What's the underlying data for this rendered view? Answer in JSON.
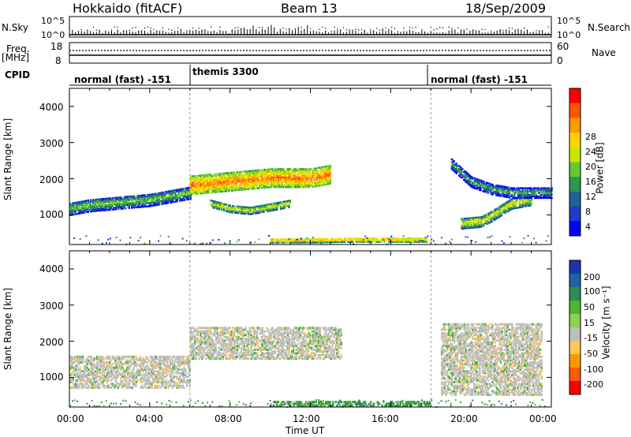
{
  "header": {
    "station": "Hokkaido (fitACF)",
    "beam": "Beam 13",
    "date": "18/Sep/2009"
  },
  "panels": {
    "nsky": {
      "label": "N.Sky",
      "ticks_left": [
        "10^5",
        "10^0"
      ],
      "ticks_right": [
        "10^5",
        "10^0"
      ],
      "right_label": "N.Search"
    },
    "freq": {
      "label": "Freq.",
      "unit": "[MHz]",
      "ticks_left": [
        "18",
        "8"
      ],
      "ticks_right": [
        "60",
        "0"
      ],
      "right_label": "Nave"
    },
    "cpid": {
      "label": "CPID",
      "segments": [
        "normal (fast) -151",
        "themis 3300",
        "normal (fast) -151"
      ]
    }
  },
  "axes": {
    "y_label": "Slant Range [km]",
    "y_ticks": [
      "4000",
      "3000",
      "2000",
      "1000"
    ],
    "x_label": "Time UT",
    "x_ticks": [
      "00:00",
      "04:00",
      "08:00",
      "12:00",
      "16:00",
      "20:00",
      "00:00"
    ]
  },
  "colorbars": {
    "power": {
      "label": "Power [dB]",
      "ticks": [
        "28",
        "24",
        "20",
        "16",
        "12",
        "8",
        "4"
      ],
      "colors": [
        "#ff0000",
        "#ff5500",
        "#ff9900",
        "#ffd200",
        "#c8e600",
        "#64c832",
        "#2d9650",
        "#1e6496",
        "#1e3cc8",
        "#0000ff"
      ]
    },
    "velocity": {
      "label": "Velocity [m s⁻¹]",
      "ticks": [
        "200",
        "100",
        "50",
        "15",
        "-15",
        "-50",
        "-100",
        "-200"
      ],
      "colors": [
        "#1e32b4",
        "#1e64a0",
        "#2d8c50",
        "#50b432",
        "#8cd250",
        "#bebebe",
        "#ffc850",
        "#ff9600",
        "#ff5a00",
        "#ff0000"
      ]
    }
  },
  "chart_data": {
    "type": "heatmap",
    "x_unit": "UT hours",
    "x_range": [
      0,
      24
    ],
    "y_range_km": [
      180,
      4500
    ],
    "cpid_segments": [
      {
        "start": 0,
        "end": 6,
        "name": "normal (fast) -151"
      },
      {
        "start": 6,
        "end": 18,
        "name": "themis 3300"
      },
      {
        "start": 18,
        "end": 24,
        "name": "normal (fast) -151"
      }
    ],
    "power_bands": [
      {
        "t": [
          0,
          1,
          2,
          3,
          4,
          5,
          6
        ],
        "range": [
          1150,
          1250,
          1300,
          1350,
          1400,
          1500,
          1600
        ],
        "width": 350,
        "power": 16
      },
      {
        "t": [
          6,
          7,
          8,
          9,
          10,
          11,
          12,
          13
        ],
        "range": [
          1800,
          1850,
          1900,
          1950,
          2000,
          2000,
          2000,
          2100
        ],
        "width": 500,
        "power": 26
      },
      {
        "t": [
          7,
          8,
          9,
          10,
          11
        ],
        "range": [
          1300,
          1150,
          1100,
          1200,
          1300
        ],
        "width": 200,
        "power": 20
      },
      {
        "t": [
          10,
          12,
          14,
          16,
          17.8
        ],
        "range": [
          280,
          280,
          300,
          300,
          300
        ],
        "width": 130,
        "power": 24
      },
      {
        "t": [
          19.5,
          20.5,
          21,
          22,
          23
        ],
        "range": [
          750,
          800,
          950,
          1300,
          1400
        ],
        "width": 300,
        "power": 20
      },
      {
        "t": [
          19,
          20,
          21,
          22,
          24
        ],
        "range": [
          2400,
          1900,
          1700,
          1600,
          1600
        ],
        "width": 300,
        "power": 14
      }
    ],
    "velocity_regions": [
      {
        "t": [
          0,
          6
        ],
        "range": [
          700,
          1600
        ],
        "velocity": 0
      },
      {
        "t": [
          6,
          13.5
        ],
        "range": [
          1500,
          2400
        ],
        "velocity": 0
      },
      {
        "t": [
          10,
          18
        ],
        "range": [
          200,
          320
        ],
        "velocity": 30
      },
      {
        "t": [
          18.5,
          23.5
        ],
        "range": [
          500,
          2500
        ],
        "velocity": 0
      }
    ]
  }
}
